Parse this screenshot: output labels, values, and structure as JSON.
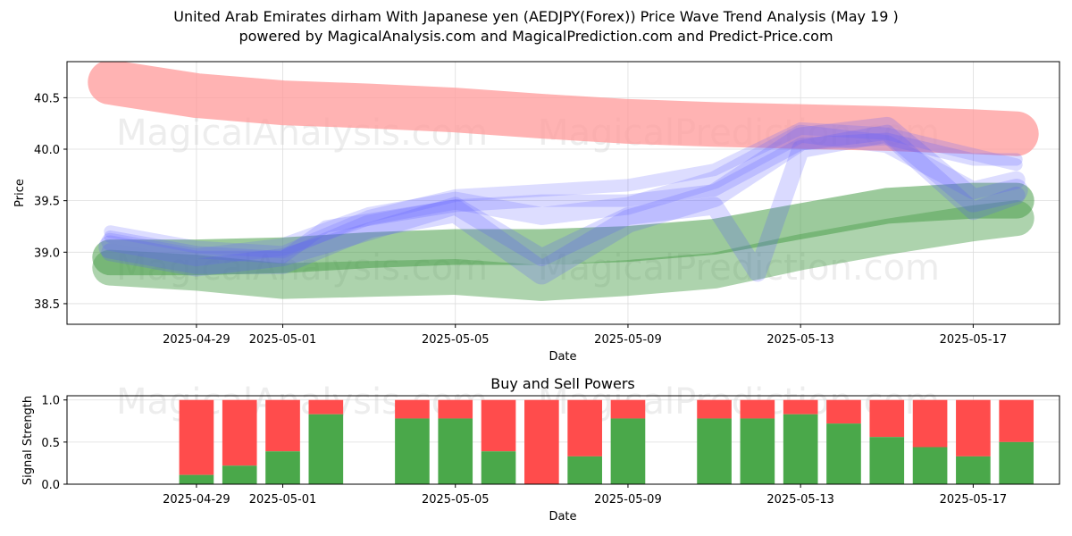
{
  "title_line1": "United Arab Emirates dirham With Japanese yen (AEDJPY(Forex)) Price Wave Trend Analysis (May 19 )",
  "title_line2": "powered by MagicalAnalysis.com and MagicalPrediction.com and Predict-Price.com",
  "watermarks": [
    "MagicalAnalysis.com",
    "MagicalPrediction.com"
  ],
  "colors": {
    "red_band": "#ff9999",
    "green_band": "#4a9e4a",
    "blue_wave": "#5555ff",
    "purple_wave": "#9955cc",
    "buy": "#4aa84a",
    "sell": "#ff4c4c"
  },
  "chart_data": [
    {
      "type": "line",
      "xlabel": "Date",
      "ylabel": "Price",
      "ylim": [
        38.3,
        40.85
      ],
      "xlim": [
        "2025-04-26",
        "2025-05-19"
      ],
      "grid": true,
      "x_ticks": [
        "2025-04-29",
        "2025-05-01",
        "2025-05-05",
        "2025-05-09",
        "2025-05-13",
        "2025-05-17"
      ],
      "y_ticks": [
        38.5,
        39.0,
        39.5,
        40.0,
        40.5
      ],
      "bands": [
        {
          "name": "upper-red",
          "color": "#ff9999",
          "points": [
            [
              "2025-04-27",
              40.65
            ],
            [
              "2025-04-29",
              40.52
            ],
            [
              "2025-05-01",
              40.45
            ],
            [
              "2025-05-03",
              40.42
            ],
            [
              "2025-05-05",
              40.38
            ],
            [
              "2025-05-07",
              40.32
            ],
            [
              "2025-05-09",
              40.27
            ],
            [
              "2025-05-11",
              40.24
            ],
            [
              "2025-05-13",
              40.22
            ],
            [
              "2025-05-15",
              40.2
            ],
            [
              "2025-05-17",
              40.17
            ],
            [
              "2025-05-18",
              40.15
            ]
          ]
        },
        {
          "name": "lower-green-1",
          "color": "#4a9e4a",
          "points": [
            [
              "2025-04-27",
              38.85
            ],
            [
              "2025-04-29",
              38.8
            ],
            [
              "2025-05-01",
              38.72
            ],
            [
              "2025-05-03",
              38.74
            ],
            [
              "2025-05-05",
              38.76
            ],
            [
              "2025-05-07",
              38.7
            ],
            [
              "2025-05-09",
              38.75
            ],
            [
              "2025-05-11",
              38.82
            ],
            [
              "2025-05-13",
              39.0
            ],
            [
              "2025-05-15",
              39.15
            ],
            [
              "2025-05-17",
              39.28
            ],
            [
              "2025-05-18",
              39.33
            ]
          ]
        },
        {
          "name": "lower-green-2",
          "color": "#4a9e4a",
          "points": [
            [
              "2025-04-27",
              38.95
            ],
            [
              "2025-04-29",
              38.95
            ],
            [
              "2025-05-01",
              38.97
            ],
            [
              "2025-05-03",
              39.02
            ],
            [
              "2025-05-05",
              39.05
            ],
            [
              "2025-05-07",
              39.05
            ],
            [
              "2025-05-09",
              39.08
            ],
            [
              "2025-05-11",
              39.15
            ],
            [
              "2025-05-13",
              39.3
            ],
            [
              "2025-05-15",
              39.45
            ],
            [
              "2025-05-17",
              39.5
            ],
            [
              "2025-05-18",
              39.5
            ]
          ]
        }
      ],
      "series": [
        {
          "points": [
            [
              "2025-04-27",
              39.15
            ],
            [
              "2025-04-29",
              39.0
            ],
            [
              "2025-05-01",
              38.95
            ],
            [
              "2025-05-02",
              39.25
            ],
            [
              "2025-05-05",
              39.45
            ],
            [
              "2025-05-07",
              39.5
            ],
            [
              "2025-05-09",
              39.5
            ],
            [
              "2025-05-11",
              39.6
            ],
            [
              "2025-05-13",
              40.05
            ],
            [
              "2025-05-15",
              40.1
            ],
            [
              "2025-05-17",
              39.9
            ],
            [
              "2025-05-18",
              39.9
            ]
          ]
        },
        {
          "points": [
            [
              "2025-04-27",
              39.1
            ],
            [
              "2025-04-29",
              38.95
            ],
            [
              "2025-05-01",
              39.05
            ],
            [
              "2025-05-03",
              39.35
            ],
            [
              "2025-05-05",
              39.5
            ],
            [
              "2025-05-07",
              39.35
            ],
            [
              "2025-05-09",
              39.45
            ],
            [
              "2025-05-11",
              39.7
            ],
            [
              "2025-05-13",
              40.15
            ],
            [
              "2025-05-15",
              40.05
            ],
            [
              "2025-05-17",
              39.6
            ],
            [
              "2025-05-18",
              39.7
            ]
          ]
        },
        {
          "points": [
            [
              "2025-04-27",
              39.05
            ],
            [
              "2025-04-29",
              38.9
            ],
            [
              "2025-05-01",
              38.9
            ],
            [
              "2025-05-03",
              39.25
            ],
            [
              "2025-05-05",
              39.4
            ],
            [
              "2025-05-07",
              38.8
            ],
            [
              "2025-05-09",
              39.3
            ],
            [
              "2025-05-11",
              39.55
            ],
            [
              "2025-05-13",
              40.1
            ],
            [
              "2025-05-15",
              40.2
            ],
            [
              "2025-05-17",
              39.5
            ],
            [
              "2025-05-18",
              39.6
            ]
          ]
        },
        {
          "points": [
            [
              "2025-04-27",
              39.2
            ],
            [
              "2025-04-29",
              39.05
            ],
            [
              "2025-05-01",
              39.0
            ],
            [
              "2025-05-03",
              39.35
            ],
            [
              "2025-05-05",
              39.55
            ],
            [
              "2025-05-07",
              39.6
            ],
            [
              "2025-05-09",
              39.65
            ],
            [
              "2025-05-11",
              39.8
            ],
            [
              "2025-05-13",
              40.2
            ],
            [
              "2025-05-15",
              40.15
            ],
            [
              "2025-05-17",
              39.95
            ],
            [
              "2025-05-18",
              39.85
            ]
          ]
        },
        {
          "points": [
            [
              "2025-04-27",
              39.0
            ],
            [
              "2025-04-29",
              38.85
            ],
            [
              "2025-05-01",
              38.95
            ],
            [
              "2025-05-03",
              39.2
            ],
            [
              "2025-05-05",
              39.45
            ],
            [
              "2025-05-07",
              38.95
            ],
            [
              "2025-05-09",
              39.35
            ],
            [
              "2025-05-11",
              39.45
            ],
            [
              "2025-05-12",
              38.8
            ],
            [
              "2025-05-13",
              40.0
            ],
            [
              "2025-05-15",
              40.15
            ],
            [
              "2025-05-17",
              39.4
            ],
            [
              "2025-05-18",
              39.55
            ]
          ]
        }
      ]
    },
    {
      "type": "bar",
      "title": "Buy and Sell Powers",
      "xlabel": "Date",
      "ylabel": "Signal Strength",
      "ylim": [
        0,
        1.05
      ],
      "xlim": [
        "2025-04-26",
        "2025-05-19"
      ],
      "x_ticks": [
        "2025-04-29",
        "2025-05-01",
        "2025-05-05",
        "2025-05-09",
        "2025-05-13",
        "2025-05-17"
      ],
      "y_ticks": [
        "0.0",
        "0.5",
        "1.0"
      ],
      "dates": [
        "2025-04-29",
        "2025-04-30",
        "2025-05-01",
        "2025-05-02",
        "2025-05-04",
        "2025-05-05",
        "2025-05-06",
        "2025-05-07",
        "2025-05-08",
        "2025-05-09",
        "2025-05-11",
        "2025-05-12",
        "2025-05-13",
        "2025-05-14",
        "2025-05-15",
        "2025-05-16",
        "2025-05-17",
        "2025-05-18"
      ],
      "buy": [
        0.11,
        0.22,
        0.39,
        0.83,
        0.78,
        0.78,
        0.39,
        0.0,
        0.33,
        0.78,
        0.78,
        0.78,
        0.83,
        0.72,
        0.56,
        0.44,
        0.33,
        0.5
      ],
      "sell": [
        0.89,
        0.78,
        0.61,
        0.17,
        0.22,
        0.22,
        0.61,
        1.0,
        0.67,
        0.22,
        0.22,
        0.22,
        0.17,
        0.28,
        0.44,
        0.56,
        0.67,
        0.5
      ]
    }
  ]
}
